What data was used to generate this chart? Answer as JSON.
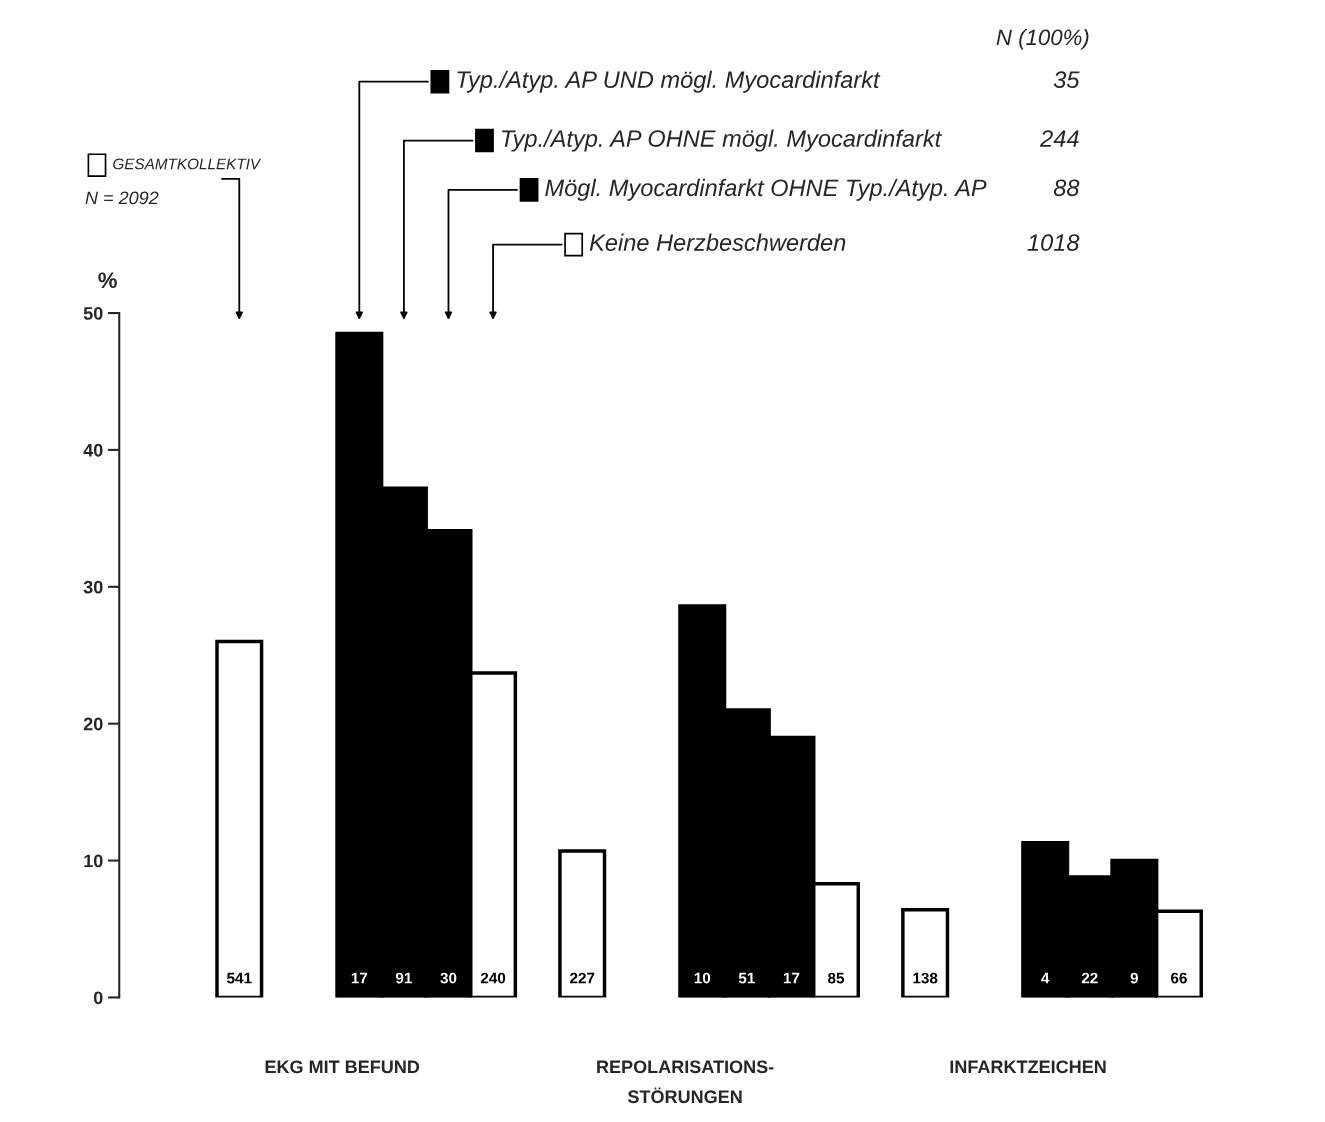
{
  "chart_data": {
    "type": "bar",
    "categories": [
      "EKG MIT BEFUND",
      "REPOLARISATIONS-\nSTÖRUNGEN",
      "INFARKTZEICHEN"
    ],
    "ylabel": "%",
    "ylim": [
      0,
      50
    ],
    "yticks": [
      0,
      10,
      20,
      30,
      40,
      50
    ],
    "grid": false,
    "legend": "top",
    "series": [
      {
        "name": "GESAMTKOLLEKTIV",
        "color": "#ffffff",
        "values": [
          26.0,
          10.7,
          6.4
        ]
      },
      {
        "name": "Typ./Atyp. AP UND mögl. Myocardinfarkt",
        "color": "#000000",
        "values": [
          48.5,
          28.6,
          11.3
        ]
      },
      {
        "name": "Typ./Atyp. AP OHNE mögl. Myocardinfarkt",
        "color": "#000000",
        "values": [
          37.2,
          21.0,
          8.8
        ]
      },
      {
        "name": "Mögl. Myocardinfarkt OHNE Typ./Atyp. AP",
        "color": "#000000",
        "values": [
          34.1,
          19.0,
          10.0
        ]
      },
      {
        "name": "Keine Herzbeschwerden",
        "color": "#ffffff",
        "values": [
          23.7,
          8.3,
          6.3
        ]
      }
    ],
    "annotations": [
      "N = 2092",
      "35",
      "244",
      "88",
      "1018",
      "N (100%)",
      "541",
      "227",
      "138",
      "17",
      "10",
      "4",
      "91",
      "51",
      "22",
      "30",
      "17",
      "9",
      "240",
      "85",
      "66"
    ]
  }
}
